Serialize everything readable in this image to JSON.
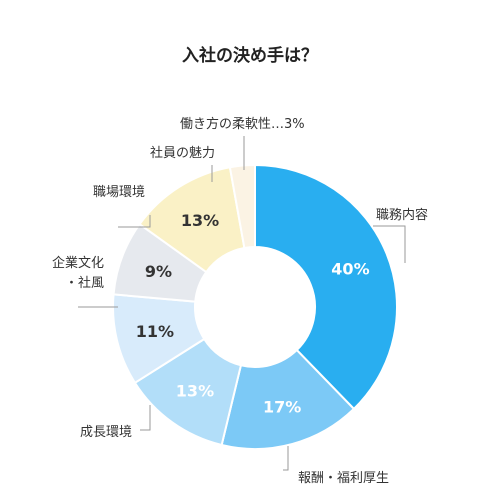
{
  "chart_data": {
    "type": "pie",
    "title": "入社の決め手は？",
    "categories": [
      "職務内容",
      "報酬・福利厚生",
      "成長環境",
      "企業文化・社風",
      "職場環境",
      "社員の魅力",
      "働き方の柔軟性"
    ],
    "values": [
      40,
      17,
      13,
      11,
      9,
      13,
      3
    ],
    "value_labels": [
      "40%",
      "17%",
      "13%",
      "11%",
      "9%",
      "13%",
      "3%"
    ],
    "category_label_lines": [
      [
        "職務内容"
      ],
      [
        "報酬・福利厚生"
      ],
      [
        "成長環境"
      ],
      [
        "企業文化",
        "・社風"
      ],
      [
        "職場環境"
      ],
      [
        "社員の魅力"
      ],
      [
        "働き方の柔軟性…3%"
      ]
    ],
    "slice_colors": [
      "#29aef0",
      "#7cc9f6",
      "#b2def9",
      "#d8ebfb",
      "#e6e9ee",
      "#faf1c6",
      "#fbf3e4"
    ],
    "value_label_colors": [
      "#ffffff",
      "#ffffff",
      "#ffffff",
      "#333333",
      "#333333",
      "#333333",
      ""
    ],
    "donut": true,
    "start": "12 o'clock, clockwise",
    "legend": "none"
  }
}
